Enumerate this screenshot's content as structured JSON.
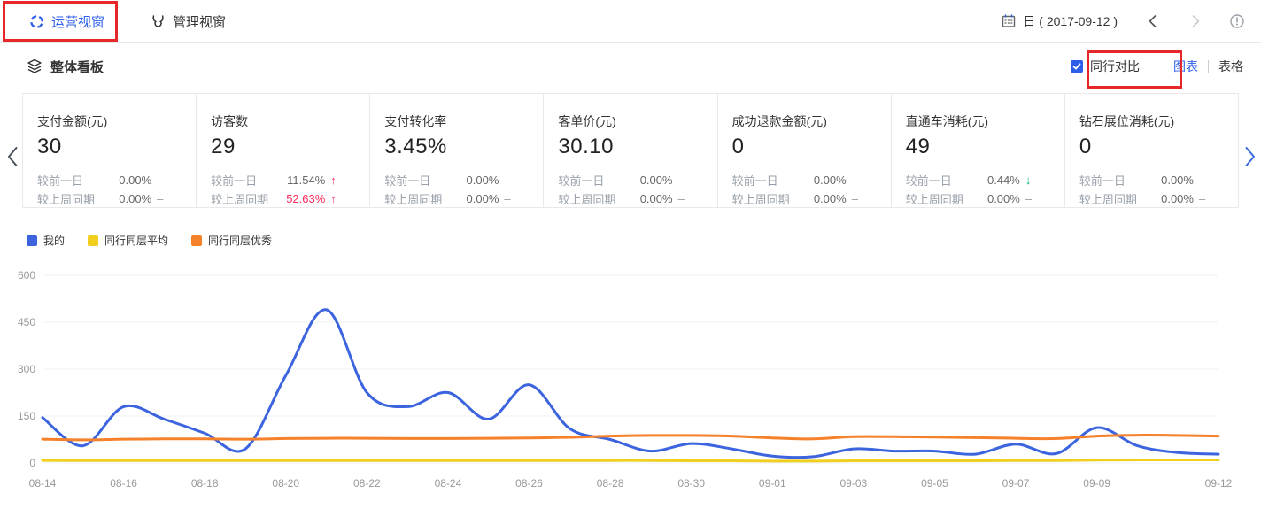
{
  "header": {
    "tabs": [
      {
        "label": "运营视窗",
        "active": true
      },
      {
        "label": "管理视窗",
        "active": false
      }
    ],
    "date_label": "日 ( 2017-09-12 )"
  },
  "section": {
    "title": "整体看板",
    "peer_compare_label": "同行对比",
    "peer_compare_checked": true,
    "chart_view_label": "图表",
    "table_view_label": "表格"
  },
  "cards": [
    {
      "title": "支付金额(元)",
      "value": "30",
      "rows": [
        {
          "label": "较前一日",
          "pct": "0.00%",
          "dir": "flat"
        },
        {
          "label": "较上周同期",
          "pct": "0.00%",
          "dir": "flat"
        }
      ]
    },
    {
      "title": "访客数",
      "value": "29",
      "rows": [
        {
          "label": "较前一日",
          "pct": "11.54%",
          "dir": "up"
        },
        {
          "label": "较上周同期",
          "pct": "52.63%",
          "dir": "up",
          "highlight": true
        }
      ]
    },
    {
      "title": "支付转化率",
      "value": "3.45%",
      "rows": [
        {
          "label": "较前一日",
          "pct": "0.00%",
          "dir": "flat"
        },
        {
          "label": "较上周同期",
          "pct": "0.00%",
          "dir": "flat"
        }
      ]
    },
    {
      "title": "客单价(元)",
      "value": "30.10",
      "rows": [
        {
          "label": "较前一日",
          "pct": "0.00%",
          "dir": "flat"
        },
        {
          "label": "较上周同期",
          "pct": "0.00%",
          "dir": "flat"
        }
      ]
    },
    {
      "title": "成功退款金额(元)",
      "value": "0",
      "rows": [
        {
          "label": "较前一日",
          "pct": "0.00%",
          "dir": "flat"
        },
        {
          "label": "较上周同期",
          "pct": "0.00%",
          "dir": "flat"
        }
      ]
    },
    {
      "title": "直通车消耗(元)",
      "value": "49",
      "rows": [
        {
          "label": "较前一日",
          "pct": "0.44%",
          "dir": "down"
        },
        {
          "label": "较上周同期",
          "pct": "0.00%",
          "dir": "flat"
        }
      ]
    },
    {
      "title": "钻石展位消耗(元)",
      "value": "0",
      "rows": [
        {
          "label": "较前一日",
          "pct": "0.00%",
          "dir": "flat"
        },
        {
          "label": "较上周同期",
          "pct": "0.00%",
          "dir": "flat"
        }
      ]
    }
  ],
  "icons": {
    "tab1": "operations-view-icon",
    "tab2": "management-view-bull-icon",
    "section": "layers-icon",
    "date": "calendar-icon",
    "help": "info-icon"
  },
  "colors": {
    "accent_blue": "#2d5fe8",
    "annotation_red": "#e62629",
    "up_red": "#fb2c5d",
    "down_green": "#00b578",
    "axis_text": "#999999",
    "gridline": "#eef0f6"
  },
  "chart_data": {
    "type": "line",
    "title": "",
    "xlabel": "",
    "ylabel": "",
    "ylim": [
      0,
      600
    ],
    "yticks": [
      0,
      150,
      300,
      450,
      600
    ],
    "grid": "horizontal-only",
    "legend_position": "top-left",
    "x": [
      "08-14",
      "08-15",
      "08-16",
      "08-17",
      "08-18",
      "08-19",
      "08-20",
      "08-21",
      "08-22",
      "08-23",
      "08-24",
      "08-25",
      "08-26",
      "08-27",
      "08-28",
      "08-29",
      "08-30",
      "08-31",
      "09-01",
      "09-02",
      "09-03",
      "09-04",
      "09-05",
      "09-06",
      "09-07",
      "09-08",
      "09-09",
      "09-10",
      "09-11",
      "09-12"
    ],
    "x_tick_labels": [
      "08-14",
      "08-16",
      "08-18",
      "08-20",
      "08-22",
      "08-24",
      "08-26",
      "08-28",
      "08-30",
      "09-01",
      "09-03",
      "09-05",
      "09-07",
      "09-09",
      "09-12"
    ],
    "x_tick_indices": [
      0,
      2,
      4,
      6,
      8,
      10,
      12,
      14,
      16,
      18,
      20,
      22,
      24,
      26,
      29
    ],
    "series": [
      {
        "name": "我的",
        "color": "#3b64de",
        "values": [
          145,
          55,
          180,
          140,
          95,
          45,
          280,
          490,
          225,
          180,
          225,
          140,
          250,
          110,
          75,
          38,
          62,
          45,
          22,
          20,
          45,
          38,
          38,
          28,
          60,
          30,
          113,
          55,
          33,
          28
        ]
      },
      {
        "name": "同行同层平均",
        "color": "#f0cf1f",
        "values": [
          8,
          8,
          8,
          8,
          8,
          8,
          8,
          8,
          8,
          8,
          8,
          8,
          8,
          8,
          8,
          8,
          7,
          7,
          6,
          6,
          7,
          7,
          7,
          7,
          8,
          8,
          9,
          10,
          10,
          10
        ]
      },
      {
        "name": "同行同层优秀",
        "color": "#f5822b",
        "values": [
          76,
          74,
          76,
          77,
          77,
          76,
          78,
          79,
          79,
          78,
          78,
          79,
          80,
          82,
          86,
          88,
          88,
          86,
          80,
          77,
          84,
          84,
          83,
          81,
          79,
          78,
          86,
          89,
          88,
          86
        ]
      }
    ]
  }
}
